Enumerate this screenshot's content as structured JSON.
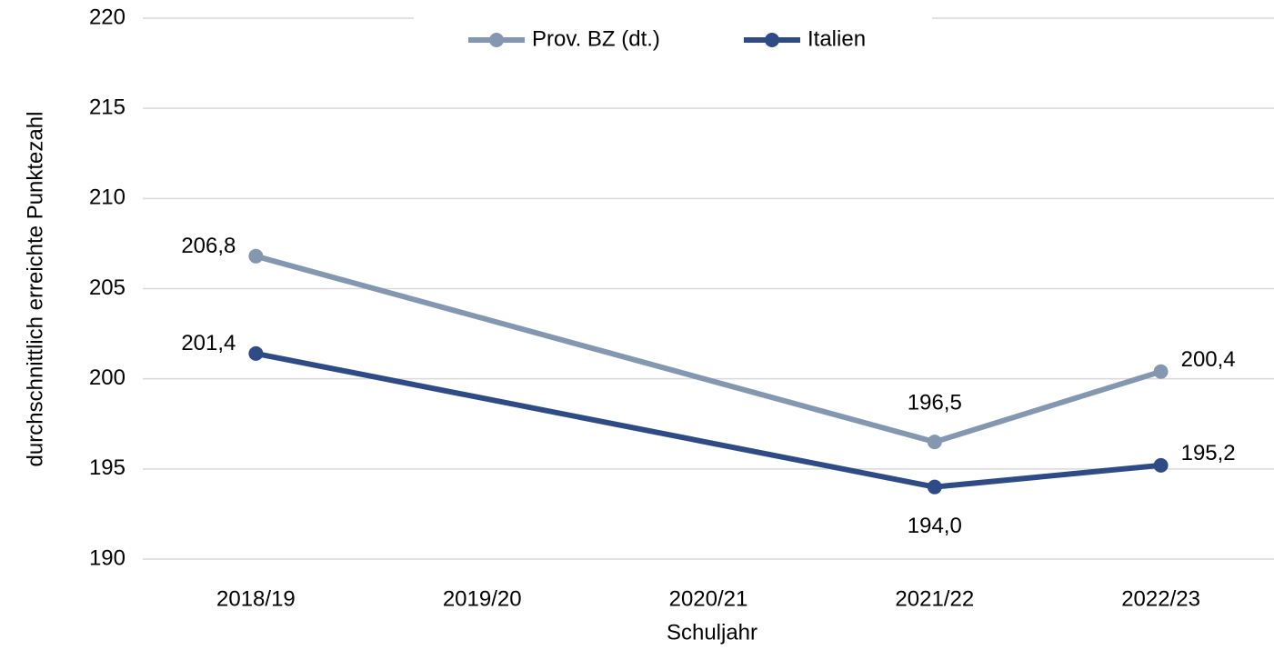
{
  "chart_data": {
    "type": "line",
    "x_label": "Schuljahr",
    "y_label": "durchschnittlich erreichte Punktezahl",
    "categories": [
      "2018/19",
      "2019/20",
      "2020/21",
      "2021/22",
      "2022/23"
    ],
    "series": [
      {
        "name": "Prov. BZ (dt.)",
        "color": "#8497b0",
        "values": [
          206.8,
          null,
          null,
          196.5,
          200.4
        ],
        "value_labels": [
          "206,8",
          null,
          null,
          "196,5",
          "200,4"
        ]
      },
      {
        "name": "Italien",
        "color": "#2f4b86",
        "values": [
          201.4,
          null,
          null,
          194.0,
          195.2
        ],
        "value_labels": [
          "201,4",
          null,
          null,
          "194,0",
          "195,2"
        ]
      }
    ],
    "connect_gaps": true,
    "ylim": [
      190,
      220
    ],
    "yticks": [
      190,
      195,
      200,
      205,
      210,
      215,
      220
    ],
    "grid": true,
    "legend": "top"
  }
}
